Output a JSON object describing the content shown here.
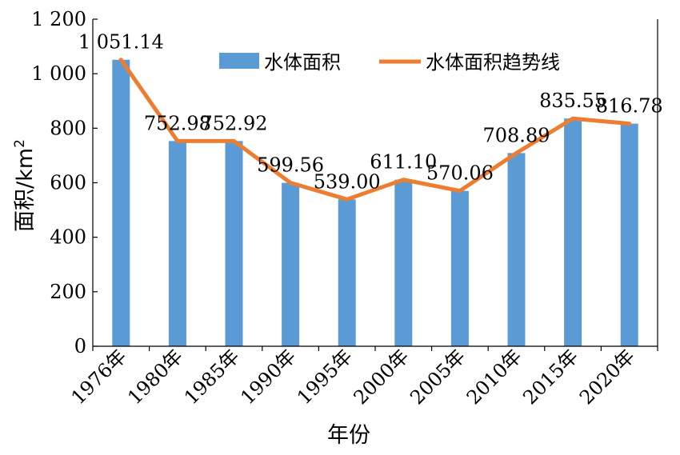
{
  "chart_data": {
    "type": "bar",
    "categories": [
      "1976年",
      "1980年",
      "1985年",
      "1990年",
      "1995年",
      "2000年",
      "2005年",
      "2010年",
      "2015年",
      "2020年"
    ],
    "series": [
      {
        "name": "水体面积",
        "type": "bar",
        "color": "#5b9bd5",
        "values": [
          1051.14,
          752.98,
          752.92,
          599.56,
          539.0,
          611.1,
          570.06,
          708.89,
          835.55,
          816.78
        ]
      },
      {
        "name": "水体面积趋势线",
        "type": "line",
        "color": "#ed7d31",
        "values": [
          1051.14,
          752.98,
          752.92,
          599.56,
          539.0,
          611.1,
          570.06,
          708.89,
          835.55,
          816.78
        ]
      }
    ],
    "data_labels": [
      "1 051.14",
      "752.98",
      "752.92",
      "599.56",
      "539.00",
      "611.10",
      "570.06",
      "708.89",
      "835.55",
      "816.78"
    ],
    "yticks": [
      "0",
      "200",
      "400",
      "600",
      "800",
      "1 000",
      "1 200"
    ],
    "ytick_values": [
      0,
      200,
      400,
      600,
      800,
      1000,
      1200
    ],
    "ylim": [
      0,
      1200
    ],
    "xlabel": "年份",
    "ylabel_main": "面积/km",
    "ylabel_sup": "2",
    "grid": false,
    "legend_position": "top"
  }
}
